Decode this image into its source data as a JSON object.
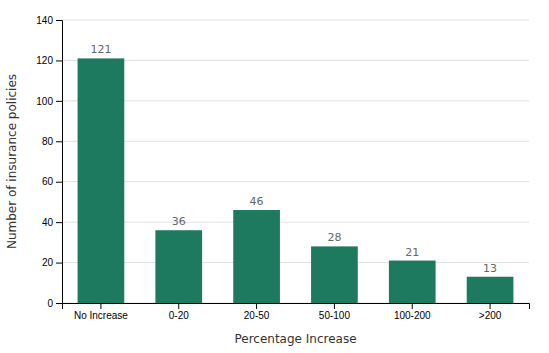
{
  "chart_data": {
    "type": "bar",
    "categories": [
      "No Increase",
      "0-20",
      "20-50",
      "50-100",
      "100-200",
      ">200"
    ],
    "values": [
      121,
      36,
      46,
      28,
      21,
      13
    ],
    "color": "#1e7a5e",
    "xlabel": "Percentage Increase",
    "ylabel": "Number of insurance policies",
    "ylim": [
      0,
      140
    ],
    "yticks": [
      0,
      20,
      40,
      60,
      80,
      100,
      120,
      140
    ],
    "grid": true,
    "data_labels": true
  }
}
